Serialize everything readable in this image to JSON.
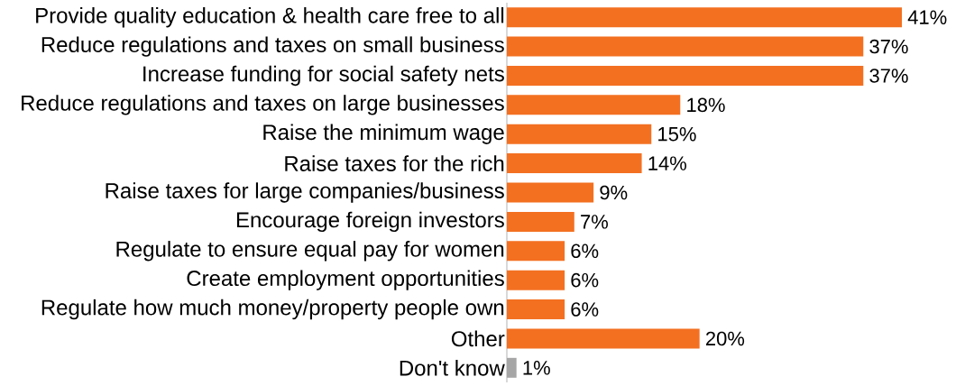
{
  "chart_data": {
    "type": "bar",
    "orientation": "horizontal",
    "categories": [
      "Provide quality education & health care free to all",
      "Reduce regulations and taxes on small business",
      "Increase funding for social safety nets",
      "Reduce regulations and taxes on large businesses",
      "Raise the minimum wage",
      "Raise taxes for the rich",
      "Raise taxes for large companies/business",
      "Encourage foreign investors",
      "Regulate to ensure equal pay for women",
      "Create employment opportunities",
      "Regulate how much money/property people own",
      "Other",
      "Don't know"
    ],
    "values": [
      41,
      37,
      37,
      18,
      15,
      14,
      9,
      7,
      6,
      6,
      6,
      20,
      1
    ],
    "value_labels": [
      "41%",
      "37%",
      "37%",
      "18%",
      "15%",
      "14%",
      "9%",
      "7%",
      "6%",
      "6%",
      "6%",
      "20%",
      "1%"
    ],
    "colors": [
      "#f37021",
      "#f37021",
      "#f37021",
      "#f37021",
      "#f37021",
      "#f37021",
      "#f37021",
      "#f37021",
      "#f37021",
      "#f37021",
      "#f37021",
      "#f37021",
      "#a6a6a6"
    ],
    "grid": false
  }
}
